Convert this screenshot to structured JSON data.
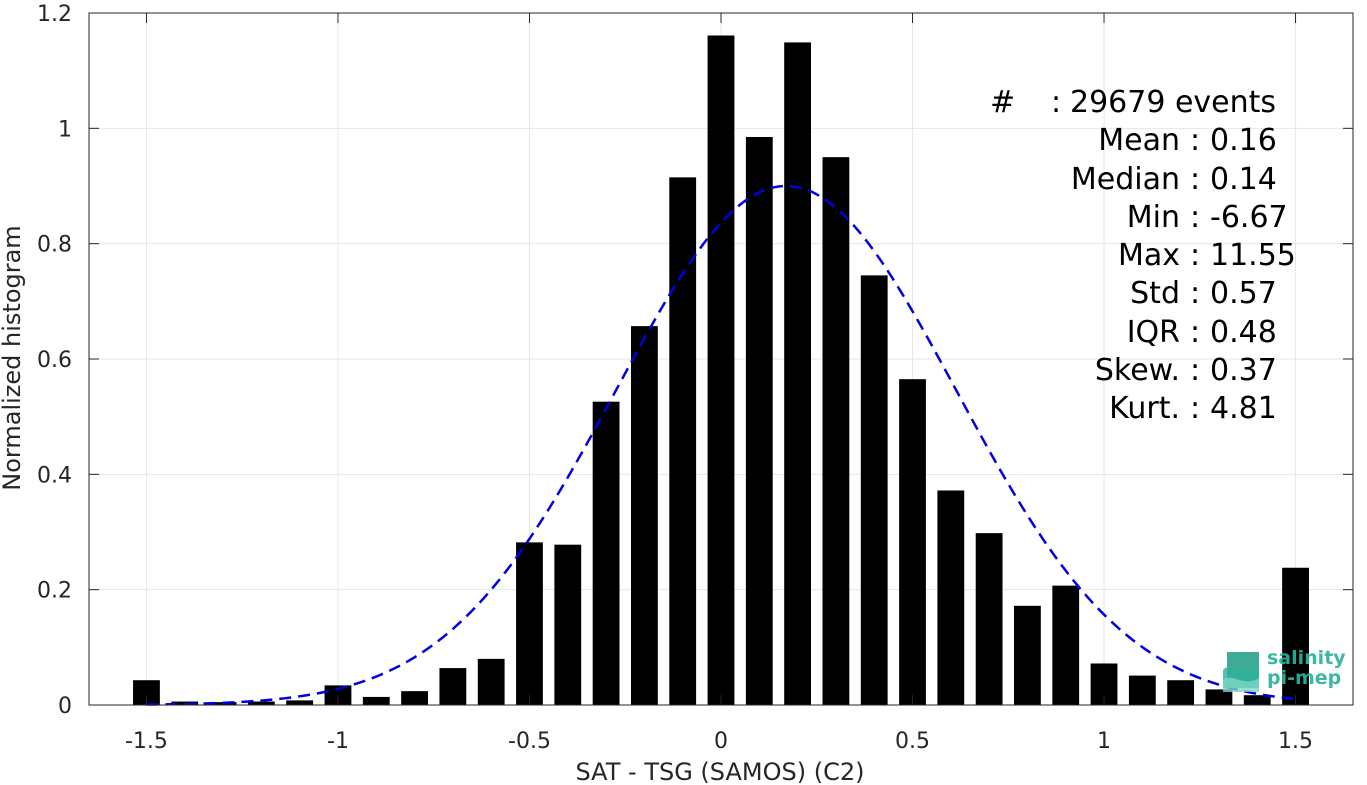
{
  "chart_data": {
    "type": "bar",
    "xlabel": "SAT - TSG (SAMOS) (C2)",
    "ylabel": "Normalized histogram",
    "xlim": [
      -1.65,
      1.65
    ],
    "ylim": [
      0,
      1.2
    ],
    "xticks": [
      -1.5,
      -1,
      -0.5,
      0,
      0.5,
      1,
      1.5
    ],
    "xtick_labels": [
      "-1.5",
      "-1",
      "-0.5",
      "0",
      "0.5",
      "1",
      "1.5"
    ],
    "yticks": [
      0,
      0.2,
      0.4,
      0.6,
      0.8,
      1,
      1.2
    ],
    "ytick_labels": [
      "0",
      "0.2",
      "0.4",
      "0.6",
      "0.8",
      "1",
      "1.2"
    ],
    "grid": true,
    "bar_width": 0.07,
    "bins": [
      {
        "x": -1.5,
        "y": 0.043
      },
      {
        "x": -1.4,
        "y": 0.006
      },
      {
        "x": -1.3,
        "y": 0.005
      },
      {
        "x": -1.2,
        "y": 0.006
      },
      {
        "x": -1.1,
        "y": 0.008
      },
      {
        "x": -1.0,
        "y": 0.034
      },
      {
        "x": -0.9,
        "y": 0.014
      },
      {
        "x": -0.8,
        "y": 0.024
      },
      {
        "x": -0.7,
        "y": 0.064
      },
      {
        "x": -0.6,
        "y": 0.08
      },
      {
        "x": -0.5,
        "y": 0.282
      },
      {
        "x": -0.4,
        "y": 0.278
      },
      {
        "x": -0.3,
        "y": 0.526
      },
      {
        "x": -0.2,
        "y": 0.657
      },
      {
        "x": -0.1,
        "y": 0.915
      },
      {
        "x": 0.0,
        "y": 1.161
      },
      {
        "x": 0.1,
        "y": 0.985
      },
      {
        "x": 0.2,
        "y": 1.149
      },
      {
        "x": 0.3,
        "y": 0.95
      },
      {
        "x": 0.4,
        "y": 0.745
      },
      {
        "x": 0.5,
        "y": 0.565
      },
      {
        "x": 0.6,
        "y": 0.372
      },
      {
        "x": 0.7,
        "y": 0.298
      },
      {
        "x": 0.8,
        "y": 0.172
      },
      {
        "x": 0.9,
        "y": 0.207
      },
      {
        "x": 1.0,
        "y": 0.072
      },
      {
        "x": 1.1,
        "y": 0.051
      },
      {
        "x": 1.2,
        "y": 0.043
      },
      {
        "x": 1.3,
        "y": 0.027
      },
      {
        "x": 1.4,
        "y": 0.017
      },
      {
        "x": 1.5,
        "y": 0.238
      }
    ],
    "fit_curve": {
      "style": "dashed",
      "color": "#0000e0",
      "kind": "gaussian",
      "mean": 0.17,
      "std": 0.444,
      "peak": 0.9,
      "x_range": [
        -1.5,
        1.5
      ]
    },
    "bar_color": "#000000",
    "stats": [
      {
        "label": "#",
        "value": "29679 events"
      },
      {
        "label": "Mean",
        "value": "0.16"
      },
      {
        "label": "Median",
        "value": "0.14"
      },
      {
        "label": "Min",
        "value": "-6.67"
      },
      {
        "label": "Max",
        "value": "11.55"
      },
      {
        "label": "Std",
        "value": "0.57"
      },
      {
        "label": "IQR",
        "value": "0.48"
      },
      {
        "label": "Skew.",
        "value": "0.37"
      },
      {
        "label": "Kurt.",
        "value": "4.81"
      }
    ]
  },
  "logo": {
    "line1": "salinity",
    "line2": "pi-mep",
    "color": "#2bb39b"
  }
}
